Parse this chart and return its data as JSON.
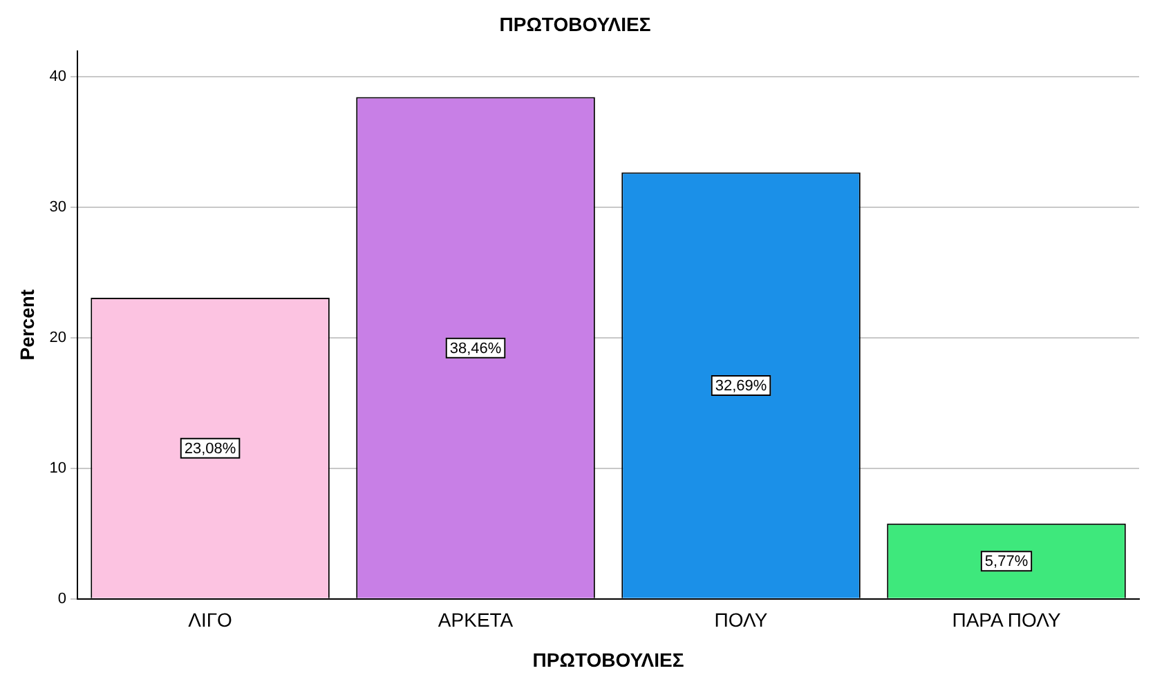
{
  "chart_data": {
    "type": "bar",
    "title": "ΠΡΩΤΟΒΟΥΛΙΕΣ",
    "xlabel": "ΠΡΩΤΟΒΟΥΛΙΕΣ",
    "ylabel": "Percent",
    "categories": [
      "ΛΙΓΟ",
      "ΑΡΚΕΤΑ",
      "ΠΟΛΥ",
      "ΠΑΡΑ ΠΟΛΥ"
    ],
    "values": [
      23.08,
      38.46,
      32.69,
      5.77
    ],
    "colors": [
      "#fcc3e1",
      "#c87fe6",
      "#1b90e8",
      "#3ee87c"
    ],
    "value_labels": [
      "23,08%",
      "38,46%",
      "32,69%",
      "5,77%"
    ],
    "ylim": [
      0,
      42
    ],
    "yticks": [
      0,
      10,
      20,
      30,
      40
    ],
    "grid": "y"
  }
}
